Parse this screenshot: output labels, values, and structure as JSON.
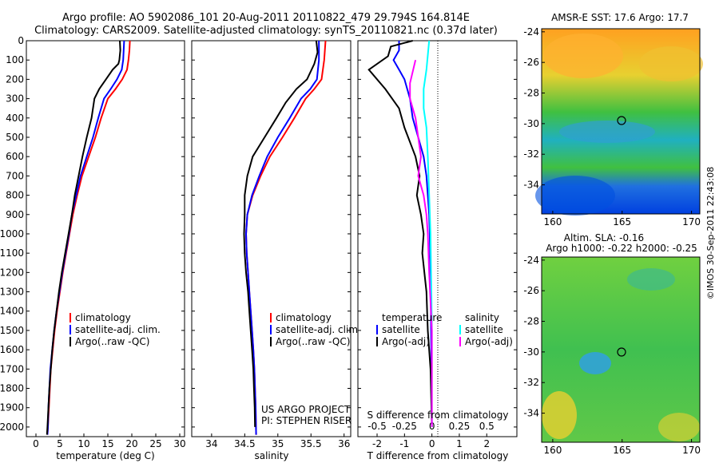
{
  "title_line1": "Argo profile: AO 5902086_101 20-Aug-2011 20110822_479 29.794S 164.814E",
  "title_line2": "Climatology: CARS2009. Satellite-adjusted climatology: synTS_20110821.nc (0.37d later)",
  "colors": {
    "climatology": "#ff0000",
    "satellite": "#0000ff",
    "argo": "#000000",
    "sat_salinity": "#00ffff",
    "argo_salinity": "#ff00ff"
  },
  "depth_ticks": [
    "0",
    "100",
    "200",
    "300",
    "400",
    "500",
    "600",
    "700",
    "800",
    "900",
    "1000",
    "1100",
    "1200",
    "1300",
    "1400",
    "1500",
    "1600",
    "1700",
    "1800",
    "1900",
    "2000"
  ],
  "legend": {
    "climatology": "climatology",
    "satellite_adj": "satellite-adj. clim.",
    "argo": "Argo(..raw -QC)"
  },
  "diff_legend": {
    "temperature": "temperature",
    "salinity": "salinity",
    "satellite": "satellite",
    "argo_adj": "Argo(-adj)"
  },
  "project": {
    "line1": "US ARGO PROJECT",
    "line2": "PI: STEPHEN RISER"
  },
  "maps": {
    "sst_title": "AMSR-E SST: 17.6 Argo: 17.7",
    "sla_title1": "Altim. SLA: -0.16",
    "sla_title2": "Argo h1000: -0.22 h2000: -0.25",
    "lat_ticks": [
      "-24",
      "-26",
      "-28",
      "-30",
      "-32",
      "-34"
    ],
    "lon_ticks": [
      "160",
      "165",
      "170"
    ],
    "float_position": {
      "lon": 164.814,
      "lat": -29.794
    }
  },
  "credit": "©IMOS 30-Sep-2011 22:43:08",
  "chart_data": [
    {
      "type": "line",
      "xlabel": "temperature (deg C)",
      "x_ticks": [
        "0",
        "5",
        "10",
        "15",
        "20",
        "25",
        "30"
      ],
      "xlim": [
        -2,
        31
      ],
      "ylim": [
        2050,
        0
      ],
      "series": [
        {
          "name": "climatology",
          "color": "#ff0000",
          "points": [
            [
              19.6,
              0
            ],
            [
              19.5,
              50
            ],
            [
              19.3,
              100
            ],
            [
              19.0,
              150
            ],
            [
              18.0,
              200
            ],
            [
              16.6,
              250
            ],
            [
              15.0,
              300
            ],
            [
              13.6,
              400
            ],
            [
              12.4,
              500
            ],
            [
              11.0,
              600
            ],
            [
              9.6,
              700
            ],
            [
              8.6,
              800
            ],
            [
              7.7,
              900
            ],
            [
              7.0,
              1000
            ],
            [
              6.3,
              1100
            ],
            [
              5.6,
              1200
            ],
            [
              5.0,
              1300
            ],
            [
              4.4,
              1400
            ],
            [
              3.9,
              1500
            ],
            [
              3.5,
              1600
            ],
            [
              3.1,
              1700
            ],
            [
              2.9,
              1800
            ],
            [
              2.7,
              1900
            ],
            [
              2.5,
              2000
            ],
            [
              2.4,
              2040
            ]
          ]
        },
        {
          "name": "satellite-adj. clim.",
          "color": "#0000ff",
          "points": [
            [
              18.4,
              0
            ],
            [
              18.3,
              50
            ],
            [
              18.2,
              100
            ],
            [
              17.9,
              150
            ],
            [
              16.9,
              200
            ],
            [
              15.6,
              250
            ],
            [
              14.2,
              300
            ],
            [
              13.0,
              400
            ],
            [
              11.9,
              500
            ],
            [
              10.6,
              600
            ],
            [
              9.3,
              700
            ],
            [
              8.4,
              800
            ],
            [
              7.5,
              900
            ],
            [
              6.9,
              1000
            ],
            [
              6.2,
              1100
            ],
            [
              5.5,
              1200
            ],
            [
              4.9,
              1300
            ],
            [
              4.3,
              1400
            ],
            [
              3.8,
              1500
            ],
            [
              3.4,
              1600
            ],
            [
              3.0,
              1700
            ],
            [
              2.8,
              1800
            ],
            [
              2.6,
              1900
            ],
            [
              2.5,
              2000
            ],
            [
              2.4,
              2040
            ]
          ]
        },
        {
          "name": "Argo(..raw -QC)",
          "color": "#000000",
          "points": [
            [
              17.5,
              0
            ],
            [
              17.6,
              50
            ],
            [
              17.4,
              100
            ],
            [
              17.2,
              120
            ],
            [
              16.0,
              150
            ],
            [
              14.6,
              200
            ],
            [
              13.2,
              250
            ],
            [
              12.2,
              300
            ],
            [
              11.6,
              400
            ],
            [
              10.6,
              500
            ],
            [
              9.7,
              600
            ],
            [
              8.9,
              700
            ],
            [
              8.1,
              800
            ],
            [
              7.5,
              900
            ],
            [
              6.8,
              1000
            ],
            [
              6.1,
              1100
            ],
            [
              5.4,
              1200
            ],
            [
              4.8,
              1300
            ],
            [
              4.3,
              1400
            ],
            [
              3.8,
              1500
            ],
            [
              3.4,
              1600
            ],
            [
              3.1,
              1700
            ],
            [
              2.8,
              1800
            ],
            [
              2.6,
              1900
            ],
            [
              2.4,
              2000
            ],
            [
              2.3,
              2040
            ]
          ]
        }
      ]
    },
    {
      "type": "line",
      "xlabel": "salinity",
      "x_ticks": [
        "34",
        "34.5",
        "35",
        "35.5",
        "36"
      ],
      "xlim": [
        33.7,
        36.1
      ],
      "ylim": [
        2050,
        0
      ],
      "series": [
        {
          "name": "climatology",
          "color": "#ff0000",
          "points": [
            [
              35.72,
              0
            ],
            [
              35.7,
              100
            ],
            [
              35.66,
              200
            ],
            [
              35.55,
              250
            ],
            [
              35.42,
              300
            ],
            [
              35.25,
              400
            ],
            [
              35.07,
              500
            ],
            [
              34.88,
              600
            ],
            [
              34.74,
              700
            ],
            [
              34.62,
              800
            ],
            [
              34.54,
              900
            ],
            [
              34.52,
              1000
            ],
            [
              34.53,
              1100
            ],
            [
              34.55,
              1200
            ],
            [
              34.57,
              1300
            ],
            [
              34.59,
              1400
            ],
            [
              34.61,
              1500
            ],
            [
              34.63,
              1600
            ],
            [
              34.645,
              1700
            ],
            [
              34.655,
              1800
            ],
            [
              34.665,
              1900
            ],
            [
              34.67,
              2000
            ],
            [
              34.672,
              2040
            ]
          ]
        },
        {
          "name": "satellite-adj. clim.",
          "color": "#0000ff",
          "points": [
            [
              35.62,
              0
            ],
            [
              35.62,
              100
            ],
            [
              35.59,
              200
            ],
            [
              35.49,
              250
            ],
            [
              35.35,
              300
            ],
            [
              35.18,
              400
            ],
            [
              35.0,
              500
            ],
            [
              34.84,
              600
            ],
            [
              34.72,
              700
            ],
            [
              34.61,
              800
            ],
            [
              34.54,
              900
            ],
            [
              34.52,
              1000
            ],
            [
              34.53,
              1100
            ],
            [
              34.55,
              1200
            ],
            [
              34.57,
              1300
            ],
            [
              34.59,
              1400
            ],
            [
              34.61,
              1500
            ],
            [
              34.63,
              1600
            ],
            [
              34.645,
              1700
            ],
            [
              34.655,
              1800
            ],
            [
              34.665,
              1900
            ],
            [
              34.67,
              2000
            ],
            [
              34.672,
              2040
            ]
          ]
        },
        {
          "name": "Argo(..raw -QC)",
          "color": "#000000",
          "points": [
            [
              35.58,
              0
            ],
            [
              35.6,
              60
            ],
            [
              35.55,
              120
            ],
            [
              35.44,
              200
            ],
            [
              35.28,
              250
            ],
            [
              35.12,
              320
            ],
            [
              34.98,
              400
            ],
            [
              34.8,
              500
            ],
            [
              34.62,
              600
            ],
            [
              34.54,
              700
            ],
            [
              34.5,
              800
            ],
            [
              34.5,
              900
            ],
            [
              34.49,
              1000
            ],
            [
              34.5,
              1100
            ],
            [
              34.52,
              1200
            ],
            [
              34.55,
              1300
            ],
            [
              34.57,
              1400
            ],
            [
              34.59,
              1500
            ],
            [
              34.61,
              1600
            ],
            [
              34.63,
              1700
            ],
            [
              34.64,
              1800
            ],
            [
              34.65,
              1900
            ],
            [
              34.655,
              2000
            ]
          ]
        }
      ]
    },
    {
      "type": "line",
      "xlabel": "T difference from climatology",
      "x_ticks": [
        "-2",
        "-1",
        "0",
        "1",
        "2"
      ],
      "x2label": "S difference from climatology",
      "x2_ticks": [
        "-0.5",
        "-0.25",
        "0",
        "0.25",
        "0.5"
      ],
      "xlim": [
        -2.7,
        3.1
      ],
      "ylim": [
        2050,
        0
      ],
      "series": [
        {
          "name": "temperature satellite",
          "color": "#0000ff",
          "points": [
            [
              -1.2,
              0
            ],
            [
              -1.2,
              50
            ],
            [
              -1.4,
              100
            ],
            [
              -1.2,
              150
            ],
            [
              -1.0,
              200
            ],
            [
              -0.8,
              300
            ],
            [
              -0.7,
              400
            ],
            [
              -0.5,
              500
            ],
            [
              -0.3,
              600
            ],
            [
              -0.2,
              700
            ],
            [
              -0.15,
              800
            ],
            [
              -0.1,
              900
            ],
            [
              -0.08,
              1000
            ],
            [
              -0.05,
              1200
            ],
            [
              -0.03,
              1500
            ],
            [
              0,
              2000
            ]
          ]
        },
        {
          "name": "temperature Argo(-adj)",
          "color": "#000000",
          "points": [
            [
              -0.7,
              0
            ],
            [
              -1.5,
              30
            ],
            [
              -1.6,
              80
            ],
            [
              -2.3,
              150
            ],
            [
              -1.7,
              250
            ],
            [
              -1.2,
              350
            ],
            [
              -1.0,
              450
            ],
            [
              -0.6,
              600
            ],
            [
              -0.45,
              700
            ],
            [
              -0.55,
              800
            ],
            [
              -0.4,
              900
            ],
            [
              -0.3,
              1000
            ],
            [
              -0.35,
              1100
            ],
            [
              -0.2,
              1300
            ],
            [
              -0.15,
              1500
            ],
            [
              -0.05,
              1700
            ],
            [
              0,
              2000
            ]
          ]
        },
        {
          "name": "salinity satellite",
          "color": "#00ffff",
          "points": [
            [
              -0.1,
              0
            ],
            [
              -0.2,
              150
            ],
            [
              -0.3,
              250
            ],
            [
              -0.3,
              350
            ],
            [
              -0.2,
              450
            ],
            [
              -0.15,
              600
            ],
            [
              -0.1,
              800
            ],
            [
              -0.05,
              1000
            ],
            [
              0,
              1500
            ],
            [
              0,
              2000
            ]
          ]
        },
        {
          "name": "salinity Argo(-adj)",
          "color": "#ff00ff",
          "points": [
            [
              -0.6,
              100
            ],
            [
              -0.8,
              220
            ],
            [
              -0.8,
              300
            ],
            [
              -0.6,
              400
            ],
            [
              -0.5,
              500
            ],
            [
              -0.4,
              600
            ],
            [
              -0.5,
              700
            ],
            [
              -0.3,
              800
            ],
            [
              -0.2,
              900
            ],
            [
              -0.15,
              1000
            ],
            [
              -0.1,
              1200
            ],
            [
              0,
              1500
            ],
            [
              0,
              2000
            ]
          ]
        }
      ]
    }
  ]
}
